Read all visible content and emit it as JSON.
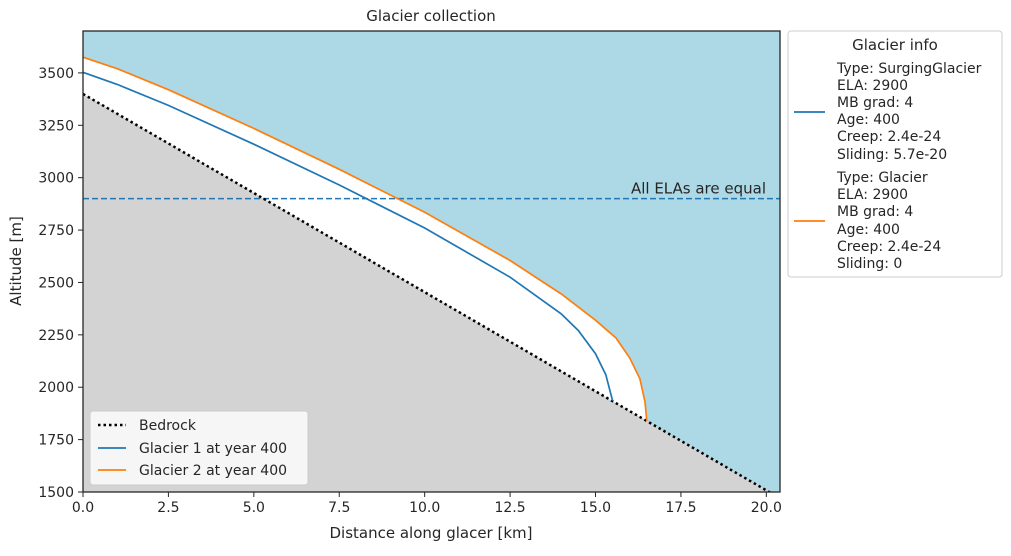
{
  "chart_data": {
    "type": "line",
    "title": "Glacier collection",
    "xlabel": "Distance along glacer [km]",
    "ylabel": "Altitude [m]",
    "xlim": [
      0,
      20.4
    ],
    "ylim": [
      1500,
      3700
    ],
    "xticks": [
      0.0,
      2.5,
      5.0,
      7.5,
      10.0,
      12.5,
      15.0,
      17.5,
      20.0
    ],
    "xtick_labels": [
      "0.0",
      "2.5",
      "5.0",
      "7.5",
      "10.0",
      "12.5",
      "15.0",
      "17.5",
      "20.0"
    ],
    "yticks": [
      1500,
      1750,
      2000,
      2250,
      2500,
      2750,
      3000,
      3250,
      3500
    ],
    "ytick_labels": [
      "1500",
      "1750",
      "2000",
      "2250",
      "2500",
      "2750",
      "3000",
      "3250",
      "3500"
    ],
    "ela_line": {
      "y": 2900,
      "label": "All ELAs are equal",
      "color": "#1f77b4"
    },
    "colors": {
      "sky": "#add8e6",
      "ground": "#d3d3d3",
      "ice": "#ffffff"
    },
    "series": [
      {
        "name": "Bedrock",
        "style": "dotted",
        "color": "#000000",
        "x": [
          0,
          20.4
        ],
        "y": [
          3400,
          1470
        ]
      },
      {
        "name": "Glacier 1 at year 400",
        "color": "#1f77b4",
        "x": [
          0,
          1,
          2.5,
          5,
          7.5,
          10,
          12.5,
          14,
          14.5,
          15,
          15.3,
          15.5
        ],
        "y": [
          3503,
          3445,
          3345,
          3160,
          2965,
          2760,
          2525,
          2350,
          2270,
          2160,
          2060,
          1935
        ]
      },
      {
        "name": "Glacier 2 at year 400",
        "color": "#ff7f0e",
        "x": [
          0,
          1,
          2.5,
          5,
          7.5,
          10,
          12.5,
          14,
          15,
          15.6,
          16,
          16.3,
          16.45,
          16.5
        ],
        "y": [
          3575,
          3520,
          3420,
          3235,
          3040,
          2835,
          2605,
          2445,
          2320,
          2235,
          2140,
          2040,
          1930,
          1840
        ]
      }
    ],
    "legend": {
      "placement": "lower-left",
      "entries": [
        "Bedrock",
        "Glacier 1 at year 400",
        "Glacier 2 at year 400"
      ]
    },
    "info_legend": {
      "title": "Glacier info",
      "placement": "outside-right",
      "entries": [
        {
          "color": "#1f77b4",
          "lines": [
            "Type: SurgingGlacier",
            "ELA: 2900",
            "MB grad: 4",
            "Age: 400",
            "Creep: 2.4e-24",
            "Sliding: 5.7e-20"
          ]
        },
        {
          "color": "#ff7f0e",
          "lines": [
            "Type: Glacier",
            "ELA: 2900",
            "MB grad: 4",
            "Age: 400",
            "Creep: 2.4e-24",
            "Sliding: 0"
          ]
        }
      ]
    }
  }
}
